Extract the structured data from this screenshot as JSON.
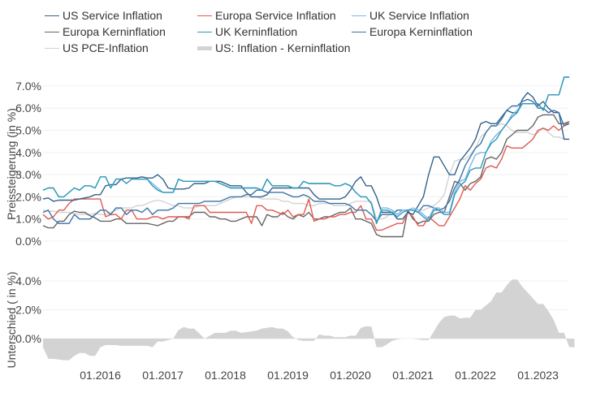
{
  "chart_data": [
    {
      "type": "line",
      "title": "",
      "ylabel": "Preissteigerung (in %)",
      "xlabel": "",
      "ylim": [
        0,
        7
      ],
      "yticks": [
        "0.0%",
        "1.0%",
        "2.0%",
        "3.0%",
        "4.0%",
        "5.0%",
        "6.0%",
        "7.0%"
      ],
      "ytick_values": [
        0,
        1,
        2,
        3,
        4,
        5,
        6,
        7
      ],
      "x_start": "02.2015",
      "x_end": "07.2023",
      "grid": true,
      "legend_position": "top",
      "series": [
        {
          "name": "US Service Inflation",
          "color": "#34618a",
          "values": [
            1.9,
            1.95,
            1.8,
            1.85,
            1.85,
            1.85,
            1.85,
            1.9,
            1.95,
            2.0,
            2.1,
            2.1,
            2.5,
            2.55,
            2.55,
            2.8,
            2.85,
            2.85,
            2.85,
            2.9,
            2.85,
            2.85,
            3.0,
            2.8,
            2.4,
            2.35,
            2.35,
            2.35,
            2.4,
            2.6,
            2.6,
            2.6,
            2.7,
            2.7,
            2.7,
            2.6,
            2.5,
            2.5,
            2.5,
            2.2,
            2.0,
            2.0,
            2.0,
            2.1,
            2.4,
            2.4,
            2.4,
            2.4,
            2.4,
            2.4,
            2.4,
            2.4,
            2.1,
            1.9,
            1.9,
            1.9,
            1.9,
            1.9,
            2.0,
            2.3,
            2.7,
            2.9,
            2.5,
            2.5,
            2.0,
            1.3,
            1.3,
            1.3,
            1.0,
            1.0,
            1.3,
            1.2,
            1.6,
            2.0,
            3.0,
            3.8,
            3.8,
            3.4,
            3.0,
            3.0,
            3.6,
            3.9,
            4.2,
            4.6,
            5.3,
            5.4,
            5.3,
            5.3,
            5.6,
            5.9,
            5.8,
            5.8,
            6.4,
            6.7,
            6.5,
            6.1,
            6.3,
            6.0,
            5.8,
            5.8,
            4.6,
            4.6
          ]
        },
        {
          "name": "Europa Service Inflation",
          "color": "#e05a50",
          "values": [
            1.2,
            1.0,
            1.1,
            1.4,
            1.4,
            1.7,
            1.9,
            1.9,
            1.9,
            1.9,
            1.9,
            1.9,
            1.1,
            1.2,
            1.2,
            1.0,
            1.4,
            1.4,
            1.0,
            1.0,
            1.0,
            1.1,
            1.1,
            1.0,
            1.1,
            1.1,
            1.1,
            1.1,
            1.0,
            1.6,
            1.6,
            1.6,
            1.3,
            1.3,
            1.3,
            1.3,
            1.3,
            1.3,
            1.3,
            1.3,
            0.8,
            1.6,
            1.6,
            1.4,
            1.4,
            1.3,
            1.2,
            1.4,
            1.1,
            1.2,
            1.2,
            1.9,
            0.9,
            1.0,
            1.0,
            1.1,
            1.1,
            1.2,
            1.2,
            1.3,
            1.3,
            1.6,
            1.0,
            1.0,
            0.5,
            0.5,
            0.6,
            0.7,
            0.8,
            0.8,
            1.3,
            1.1,
            0.7,
            0.7,
            1.1,
            0.9,
            0.7,
            0.7,
            1.1,
            1.5,
            1.9,
            2.5,
            2.3,
            2.6,
            2.8,
            3.3,
            3.4,
            3.3,
            3.7,
            4.3,
            4.2,
            4.2,
            4.2,
            4.4,
            4.6,
            5.0,
            5.1,
            5.0,
            5.2,
            5.0,
            5.2,
            5.4
          ]
        },
        {
          "name": "UK Service Inflation",
          "color": "#79b7ea",
          "values": [
            2.3,
            2.4,
            2.4,
            2.0,
            2.0,
            2.2,
            2.4,
            2.3,
            2.5,
            2.5,
            2.4,
            2.9,
            2.9,
            2.4,
            2.8,
            2.8,
            2.6,
            2.8,
            2.8,
            2.8,
            2.8,
            2.6,
            2.4,
            2.2,
            2.2,
            2.2,
            2.8,
            2.7,
            2.7,
            2.7,
            2.7,
            2.7,
            2.7,
            2.7,
            2.6,
            2.5,
            2.4,
            2.4,
            2.4,
            2.4,
            2.4,
            2.4,
            2.3,
            2.8,
            2.5,
            2.5,
            2.5,
            2.5,
            2.4,
            2.4,
            2.7,
            2.6,
            2.6,
            2.6,
            2.6,
            2.6,
            2.5,
            2.5,
            2.6,
            2.5,
            2.2,
            2.0,
            2.0,
            1.7,
            0.8,
            1.5,
            1.5,
            1.4,
            1.2,
            1.4,
            1.4,
            1.5,
            1.4,
            1.2,
            1.0,
            1.5,
            1.5,
            1.3,
            1.3,
            2.2,
            2.7,
            2.8,
            3.4,
            3.9,
            4.0,
            4.0,
            4.5,
            4.8,
            5.0,
            5.3,
            5.7,
            5.9,
            6.2,
            6.2,
            6.2,
            6.2,
            5.9,
            6.6,
            6.6,
            6.6,
            7.4,
            7.4
          ]
        },
        {
          "name": "Europa Kerninflation",
          "color": "#666666",
          "values": [
            0.7,
            0.6,
            0.6,
            0.9,
            0.9,
            1.2,
            1.35,
            1.3,
            1.3,
            1.15,
            1.05,
            0.9,
            0.9,
            0.9,
            1.0,
            1.0,
            0.8,
            0.8,
            0.8,
            0.8,
            0.8,
            0.75,
            0.7,
            0.8,
            0.9,
            0.9,
            1.1,
            1.1,
            1.1,
            1.3,
            1.3,
            1.3,
            1.1,
            1.1,
            1.0,
            1.0,
            0.9,
            0.9,
            1.0,
            1.1,
            1.1,
            1.1,
            0.7,
            1.2,
            1.1,
            1.1,
            1.3,
            1.1,
            1.0,
            1.2,
            1.1,
            1.3,
            1.0,
            1.0,
            1.1,
            1.1,
            1.2,
            1.3,
            1.3,
            1.5,
            1.0,
            1.0,
            0.9,
            0.8,
            0.3,
            0.2,
            0.2,
            0.2,
            0.2,
            0.2,
            1.4,
            1.0,
            0.8,
            0.9,
            0.9,
            1.2,
            1.3,
            1.3,
            2.0,
            2.7,
            2.6,
            2.3,
            2.6,
            2.7,
            2.9,
            3.7,
            3.8,
            3.7,
            4.0,
            4.6,
            4.8,
            5.0,
            5.0,
            5.0,
            5.2,
            5.6,
            5.7,
            5.7,
            5.7,
            5.3,
            5.3,
            5.4
          ]
        },
        {
          "name": "UK Kerninflation",
          "color": "#2f9ab8",
          "values": [
            2.3,
            2.4,
            2.4,
            2.0,
            2.0,
            2.2,
            2.4,
            2.3,
            2.5,
            2.5,
            2.4,
            2.9,
            2.9,
            2.4,
            2.8,
            2.8,
            2.6,
            2.8,
            2.8,
            2.8,
            2.8,
            2.5,
            2.3,
            2.2,
            2.2,
            2.2,
            2.8,
            2.7,
            2.7,
            2.7,
            2.7,
            2.7,
            2.7,
            2.7,
            2.6,
            2.5,
            2.4,
            2.4,
            2.4,
            2.4,
            2.4,
            2.4,
            2.3,
            2.8,
            2.5,
            2.5,
            2.5,
            2.5,
            2.4,
            2.4,
            2.7,
            2.6,
            2.6,
            2.6,
            2.6,
            2.6,
            2.5,
            2.5,
            2.6,
            2.5,
            2.2,
            2.0,
            2.0,
            1.7,
            0.8,
            1.4,
            1.4,
            1.3,
            1.1,
            1.3,
            1.4,
            1.4,
            1.3,
            1.1,
            0.9,
            1.4,
            1.4,
            1.2,
            1.2,
            2.1,
            2.5,
            2.7,
            3.2,
            3.3,
            3.3,
            4.0,
            4.4,
            4.6,
            5.0,
            5.3,
            5.6,
            5.8,
            6.2,
            6.2,
            6.2,
            6.2,
            5.9,
            6.6,
            6.6,
            6.6,
            7.4,
            7.4
          ]
        },
        {
          "name": "Europa Kerninflation",
          "color": "#3b74a8",
          "values": [
            1.3,
            1.4,
            1.0,
            0.8,
            0.8,
            0.8,
            1.2,
            1.0,
            1.0,
            1.0,
            1.2,
            1.4,
            1.4,
            1.2,
            1.5,
            1.5,
            1.2,
            1.4,
            1.4,
            1.3,
            1.5,
            1.2,
            1.4,
            1.4,
            1.4,
            1.5,
            1.7,
            1.7,
            1.7,
            1.7,
            1.7,
            1.8,
            1.8,
            1.8,
            1.8,
            1.9,
            2.0,
            2.0,
            2.0,
            2.1,
            2.1,
            2.3,
            2.3,
            2.2,
            2.2,
            2.2,
            2.2,
            2.1,
            2.0,
            2.0,
            2.1,
            2.0,
            1.8,
            1.8,
            1.8,
            1.7,
            1.7,
            1.7,
            1.7,
            1.6,
            1.4,
            1.4,
            1.4,
            1.2,
            0.9,
            1.2,
            1.2,
            1.2,
            1.4,
            1.4,
            1.4,
            1.4,
            1.3,
            1.6,
            1.6,
            1.5,
            1.4,
            1.5,
            1.8,
            2.4,
            2.8,
            3.4,
            3.8,
            4.2,
            4.4,
            4.9,
            5.2,
            5.2,
            5.5,
            5.9,
            6.1,
            6.1,
            6.3,
            6.4,
            6.3,
            6.0,
            6.0,
            5.8,
            5.9,
            5.8,
            5.2,
            5.3
          ]
        },
        {
          "name": "US PCE-Inflation",
          "color": "#d3d3d3",
          "values": [
            1.4,
            1.35,
            1.35,
            1.3,
            1.3,
            1.3,
            1.25,
            1.2,
            1.2,
            1.2,
            1.25,
            1.2,
            1.2,
            1.3,
            1.4,
            1.5,
            1.5,
            1.5,
            1.6,
            1.6,
            1.7,
            1.8,
            1.85,
            1.8,
            1.7,
            1.6,
            1.6,
            1.5,
            1.5,
            1.5,
            1.6,
            1.6,
            1.6,
            1.6,
            1.7,
            1.8,
            1.9,
            2.0,
            2.0,
            2.0,
            2.0,
            2.0,
            1.9,
            1.9,
            1.9,
            1.9,
            1.8,
            1.8,
            1.7,
            1.7,
            1.7,
            1.6,
            1.6,
            1.7,
            1.7,
            1.7,
            1.6,
            1.6,
            1.6,
            1.7,
            1.8,
            1.8,
            1.8,
            1.8,
            1.0,
            1.0,
            1.1,
            1.3,
            1.4,
            1.4,
            1.4,
            1.4,
            1.4,
            1.4,
            1.5,
            1.6,
            1.8,
            2.1,
            3.0,
            3.6,
            3.7,
            3.7,
            3.9,
            4.2,
            4.7,
            4.9,
            5.2,
            5.2,
            5.3,
            5.2,
            5.0,
            4.9,
            4.9,
            4.9,
            4.8,
            4.9,
            5.1,
            4.9,
            4.7,
            4.7,
            4.6,
            4.6
          ]
        }
      ]
    },
    {
      "type": "area",
      "title": "",
      "ylabel": "Unterschied ( in %)",
      "xlabel": "",
      "ylim": [
        -1.5,
        4
      ],
      "yticks": [
        "0.0%",
        "2.0%",
        "4.0%"
      ],
      "ytick_values": [
        0,
        2,
        4
      ],
      "x_start": "02.2015",
      "x_end": "07.2023",
      "xticks": [
        "01.2016",
        "01.2017",
        "01.2018",
        "01.2019",
        "01.2020",
        "01.2021",
        "01.2022",
        "01.2023"
      ],
      "grid": true,
      "series": [
        {
          "name": "US: Inflation - Kerninflation",
          "color": "#d3d3d3",
          "values": [
            -0.6,
            -1.4,
            -1.4,
            -1.45,
            -1.5,
            -1.5,
            -1.2,
            -1.0,
            -1.0,
            -1.2,
            -1.2,
            -0.6,
            -0.45,
            -0.45,
            -0.45,
            -0.5,
            -0.5,
            -0.5,
            -0.5,
            -0.5,
            -0.5,
            -0.6,
            -0.2,
            -0.2,
            -0.1,
            0.0,
            0.6,
            0.8,
            0.7,
            0.7,
            0.35,
            0.0,
            0.2,
            0.4,
            0.4,
            0.4,
            0.55,
            0.55,
            0.4,
            0.45,
            0.5,
            0.55,
            0.7,
            0.75,
            0.8,
            0.7,
            0.7,
            0.5,
            0.1,
            -0.1,
            -0.15,
            -0.15,
            -0.15,
            0.3,
            0.2,
            0.2,
            0.1,
            0.1,
            0.1,
            0.2,
            0.2,
            0.75,
            0.85,
            0.85,
            -0.6,
            -0.6,
            -0.4,
            -0.15,
            -0.05,
            0.0,
            0.0,
            0.0,
            -0.05,
            -0.1,
            -0.1,
            0.5,
            1.1,
            1.5,
            1.6,
            1.6,
            1.4,
            1.45,
            1.45,
            2.0,
            2.0,
            2.3,
            2.6,
            3.2,
            3.2,
            3.7,
            4.1,
            4.1,
            3.6,
            3.2,
            2.8,
            2.4,
            2.4,
            1.9,
            1.3,
            0.4,
            0.4,
            -0.6,
            -0.6
          ]
        }
      ]
    }
  ],
  "legend": [
    {
      "label": "US Service Inflation",
      "color": "#34618a",
      "kind": "line"
    },
    {
      "label": "Europa Service Inflation",
      "color": "#e05a50",
      "kind": "line"
    },
    {
      "label": "UK Service Inflation",
      "color": "#79b7ea",
      "kind": "line"
    },
    {
      "label": "Europa Kerninflation",
      "color": "#666666",
      "kind": "line"
    },
    {
      "label": "UK Kerninflation",
      "color": "#2f9ab8",
      "kind": "line"
    },
    {
      "label": "Europa Kerninflation",
      "color": "#3b74a8",
      "kind": "line"
    },
    {
      "label": "US PCE-Inflation",
      "color": "#d3d3d3",
      "kind": "line"
    },
    {
      "label": "US: Inflation - Kerninflation",
      "color": "#d3d3d3",
      "kind": "area"
    }
  ]
}
